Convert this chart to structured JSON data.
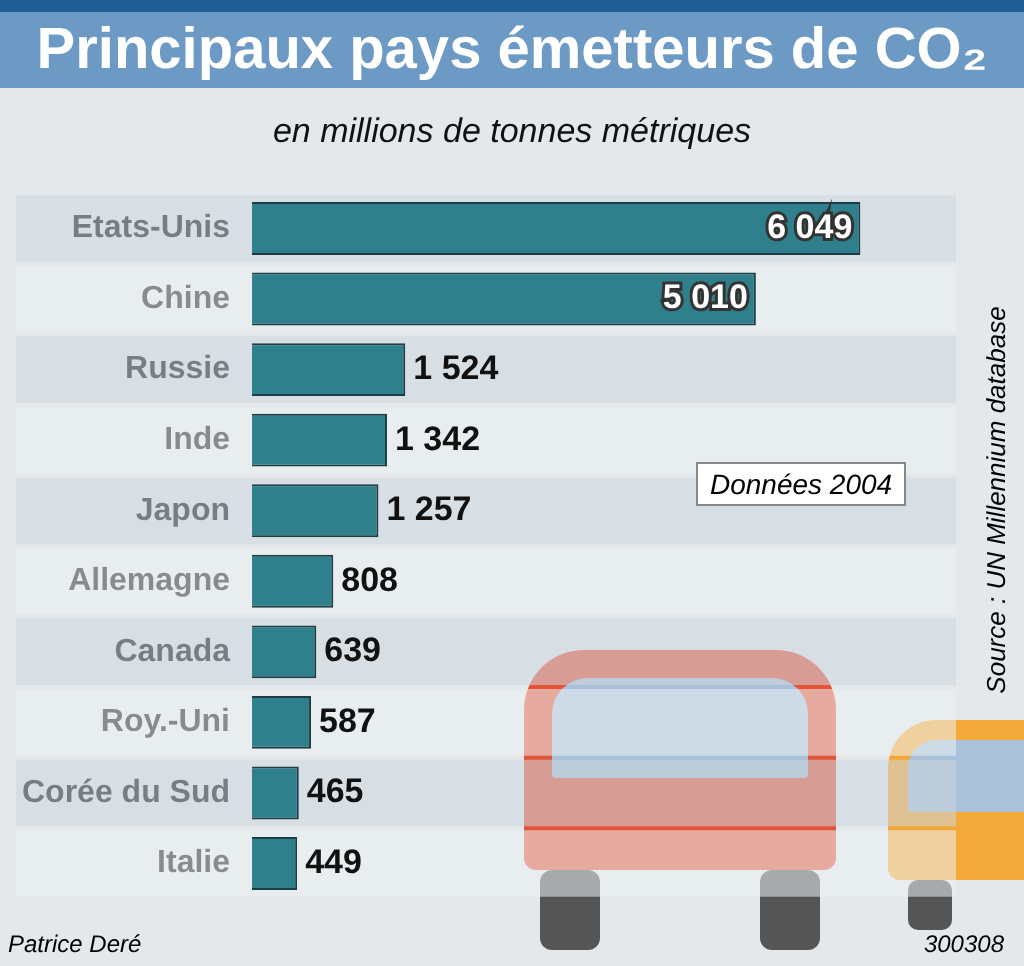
{
  "chart_data": {
    "type": "bar",
    "orientation": "horizontal",
    "title": "Principaux pays émetteurs de CO₂",
    "subtitle": "en millions de tonnes métriques",
    "categories": [
      "Etats-Unis",
      "Chine",
      "Russie",
      "Inde",
      "Japon",
      "Allemagne",
      "Canada",
      "Roy.-Uni",
      "Corée du Sud",
      "Italie"
    ],
    "values": [
      6049,
      5010,
      1524,
      1342,
      1257,
      808,
      639,
      587,
      465,
      449
    ],
    "value_labels": [
      "6 049",
      "5 010",
      "1 524",
      "1 342",
      "1 257",
      "808",
      "639",
      "587",
      "465",
      "449"
    ],
    "color": "#2f7f8c",
    "grid": false,
    "legend": false,
    "annotations": [
      "Données 2004",
      "Source : UN Millennium database",
      "Patrice Deré",
      "300308"
    ]
  }
}
